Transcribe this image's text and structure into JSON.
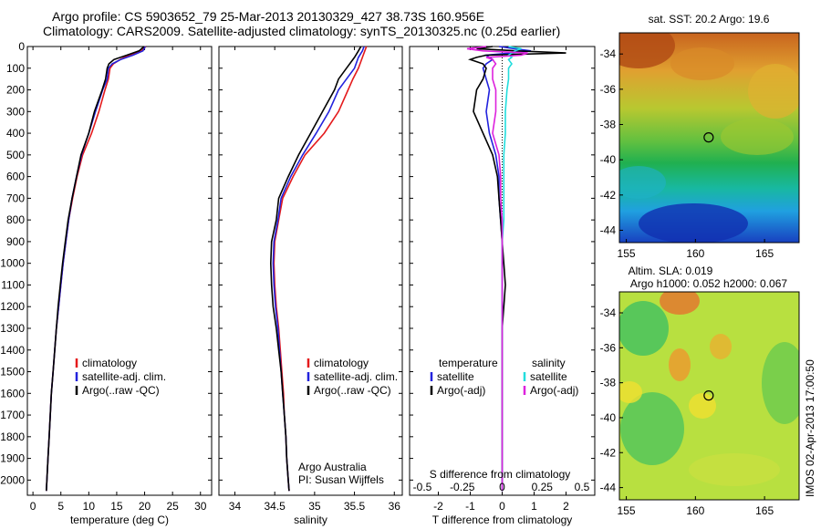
{
  "header": {
    "line1": "Argo profile: CS 5903652_79 25-Mar-2013 20130329_427 38.73S 160.956E",
    "line2": "Climatology: CARS2009. Satellite-adjusted climatology: synTS_20130325.nc (0.25d earlier)"
  },
  "colors": {
    "climatology": "#e41a1c",
    "satellite": "#2222dd",
    "argo": "#000000",
    "salinity_satellite": "#22dddd",
    "salinity_argo": "#dd22dd"
  },
  "chart_data": [
    {
      "type": "line",
      "name": "temperature profile",
      "xlabel": "temperature (deg C)",
      "ylabel": "",
      "xlim": [
        -1,
        32
      ],
      "ylim": [
        2070,
        0
      ],
      "xticks": [
        "0",
        "5",
        "10",
        "15",
        "20",
        "25",
        "30"
      ],
      "yticks": [
        "0",
        "100",
        "200",
        "300",
        "400",
        "500",
        "600",
        "700",
        "800",
        "900",
        "1000",
        "1100",
        "1200",
        "1300",
        "1400",
        "1500",
        "1600",
        "1700",
        "1800",
        "1900",
        "2000"
      ],
      "legend": [
        "climatology",
        "satellite-adj. clim.",
        "Argo(..raw -QC)"
      ],
      "legend_loc": "lower-middle",
      "y": [
        0,
        20,
        40,
        60,
        80,
        100,
        150,
        200,
        300,
        400,
        500,
        600,
        700,
        800,
        900,
        1000,
        1100,
        1200,
        1300,
        1400,
        1500,
        1600,
        1700,
        1800,
        1900,
        2000,
        2050
      ],
      "series": [
        {
          "name": "climatology",
          "color_key": "climatology",
          "values": [
            20.2,
            19.4,
            17.2,
            15.6,
            14.4,
            13.8,
            13.5,
            12.9,
            11.8,
            10.5,
            8.9,
            7.9,
            7.1,
            6.4,
            5.9,
            5.4,
            5.0,
            4.6,
            4.2,
            3.9,
            3.6,
            3.3,
            3.1,
            2.9,
            2.7,
            2.5,
            2.4
          ]
        },
        {
          "name": "satellite-adj. clim.",
          "color_key": "satellite",
          "values": [
            20.1,
            19.7,
            17.9,
            15.7,
            14.2,
            13.5,
            13.3,
            12.5,
            11.2,
            10.0,
            8.7,
            7.8,
            7.0,
            6.4,
            5.9,
            5.4,
            5.0,
            4.6,
            4.2,
            3.9,
            3.6,
            3.3,
            3.1,
            2.9,
            2.7,
            2.5,
            2.4
          ]
        },
        {
          "name": "Argo(..raw -QC)",
          "color_key": "argo",
          "values": [
            19.9,
            19.0,
            16.8,
            14.5,
            13.6,
            13.3,
            13.0,
            12.4,
            11.0,
            10.0,
            8.6,
            7.8,
            7.0,
            6.3,
            5.8,
            5.3,
            4.9,
            4.5,
            4.2,
            3.9,
            3.6,
            3.3,
            3.1,
            2.9,
            2.7,
            2.5,
            2.4
          ]
        }
      ]
    },
    {
      "type": "line",
      "name": "salinity profile",
      "xlabel": "salinity",
      "ylabel": "",
      "xlim": [
        33.8,
        36.1
      ],
      "ylim": [
        2070,
        0
      ],
      "xticks": [
        "34",
        "34.5",
        "35",
        "35.5",
        "36"
      ],
      "legend": [
        "climatology",
        "satellite-adj. clim.",
        "Argo(..raw -QC)"
      ],
      "legend_loc": "lower-middle",
      "annotation": [
        "Argo Australia",
        "PI: Susan Wijffels"
      ],
      "y": [
        0,
        20,
        50,
        100,
        150,
        200,
        300,
        400,
        500,
        600,
        700,
        800,
        900,
        1000,
        1100,
        1200,
        1300,
        1400,
        1500,
        1600,
        1700,
        1800,
        1900,
        2000,
        2050
      ],
      "series": [
        {
          "name": "climatology",
          "color_key": "climatology",
          "values": [
            35.65,
            35.63,
            35.6,
            35.55,
            35.48,
            35.42,
            35.3,
            35.12,
            34.88,
            34.73,
            34.6,
            34.55,
            34.5,
            34.49,
            34.5,
            34.52,
            34.55,
            34.57,
            34.59,
            34.61,
            34.62,
            34.64,
            34.65,
            34.67,
            34.68
          ]
        },
        {
          "name": "satellite-adj. clim.",
          "color_key": "satellite",
          "values": [
            35.62,
            35.6,
            35.55,
            35.5,
            35.4,
            35.3,
            35.18,
            35.02,
            34.85,
            34.7,
            34.58,
            34.54,
            34.49,
            34.48,
            34.49,
            34.51,
            34.54,
            34.56,
            34.58,
            34.6,
            34.62,
            34.64,
            34.65,
            34.67,
            34.68
          ]
        },
        {
          "name": "Argo(..raw -QC)",
          "color_key": "argo",
          "values": [
            35.58,
            35.55,
            35.5,
            35.4,
            35.3,
            35.25,
            35.1,
            34.95,
            34.8,
            34.67,
            34.55,
            34.52,
            34.46,
            34.45,
            34.46,
            34.48,
            34.52,
            34.55,
            34.58,
            34.6,
            34.62,
            34.64,
            34.65,
            34.67,
            34.68
          ]
        }
      ]
    },
    {
      "type": "line",
      "name": "difference from climatology",
      "xlabel": "T difference from climatology",
      "x2label": "S difference from climatology",
      "ylabel": "",
      "xlim": [
        -2.9,
        2.9
      ],
      "ylim": [
        2070,
        0
      ],
      "xticks": [
        "-2",
        "-1",
        "0",
        "1",
        "2"
      ],
      "x2ticks": [
        "-0.5",
        "-0.25",
        "0",
        "0.25",
        "0.5"
      ],
      "legend_titles": [
        "temperature",
        "salinity"
      ],
      "legend": [
        "satellite",
        "Argo(-adj)",
        "satellite",
        "Argo(-adj)"
      ],
      "legend_loc": "lower-middle",
      "y": [
        0,
        10,
        20,
        30,
        40,
        50,
        60,
        80,
        100,
        150,
        200,
        300,
        400,
        500,
        600,
        700,
        800,
        900,
        1000,
        1100,
        1200,
        1300,
        1400,
        1500,
        1600,
        1700,
        1800,
        1900,
        2000,
        2050
      ],
      "series": [
        {
          "name": "temperature satellite",
          "color_key": "satellite",
          "values": [
            -0.1,
            0.4,
            0.9,
            0.3,
            -0.5,
            -0.4,
            -0.3,
            -0.5,
            -0.6,
            -0.5,
            -0.4,
            -0.5,
            -0.4,
            -0.2,
            -0.1,
            -0.1,
            -0.05,
            0.0,
            0.0,
            0.0,
            0.0,
            0.0,
            0.0,
            0.0,
            0.0,
            0.0,
            0.0,
            0.0,
            0.0,
            0.0
          ]
        },
        {
          "name": "temperature Argo(-adj)",
          "color_key": "argo",
          "values": [
            -0.3,
            -0.8,
            0.5,
            2.0,
            -0.5,
            -0.8,
            -1.0,
            -0.6,
            -0.5,
            -0.6,
            -0.8,
            -0.9,
            -0.6,
            -0.3,
            -0.15,
            -0.1,
            -0.05,
            0.0,
            0.05,
            0.1,
            0.05,
            0.0,
            0.0,
            0.0,
            0.0,
            0.0,
            0.0,
            0.0,
            0.0,
            0.0
          ]
        },
        {
          "name": "salinity satellite",
          "color_key": "salinity_satellite",
          "values": [
            0.2,
            0.6,
            0.4,
            0.3,
            0.2,
            0.3,
            0.2,
            0.3,
            0.2,
            0.2,
            0.15,
            0.1,
            0.1,
            0.05,
            0.05,
            0.05,
            0.05,
            0.0,
            0.0,
            0.0,
            0.0,
            0.0,
            0.0,
            0.0,
            0.0,
            0.0,
            0.0,
            0.0,
            0.0,
            0.0
          ]
        },
        {
          "name": "salinity Argo(-adj)",
          "color_key": "salinity_argo",
          "values": [
            -0.5,
            -1.1,
            -0.6,
            0.8,
            0.6,
            -0.5,
            -0.3,
            -0.2,
            -0.3,
            -0.3,
            -0.2,
            -0.2,
            -0.3,
            -0.1,
            -0.05,
            -0.05,
            0.0,
            0.0,
            0.0,
            0.0,
            0.0,
            0.0,
            0.0,
            0.0,
            0.0,
            0.0,
            0.0,
            0.0,
            0.0,
            0.0
          ]
        }
      ]
    },
    {
      "type": "heatmap",
      "name": "satellite SST map",
      "title": "sat. SST: 20.2  Argo: 19.6",
      "xlim": [
        154.5,
        167.5
      ],
      "ylim": [
        -44.7,
        -32.8
      ],
      "xticks": [
        "155",
        "160",
        "165"
      ],
      "yticks": [
        "-34",
        "-36",
        "-38",
        "-40",
        "-42",
        "-44"
      ],
      "marker": {
        "lon": 160.956,
        "lat": -38.73
      }
    },
    {
      "type": "heatmap",
      "name": "altimetry SLA map",
      "title": "Altim. SLA: 0.019",
      "subtitle": "Argo h1000: 0.052 h2000: 0.067",
      "xlim": [
        154.5,
        167.5
      ],
      "ylim": [
        -44.7,
        -32.8
      ],
      "xticks": [
        "155",
        "160",
        "165"
      ],
      "yticks": [
        "-34",
        "-36",
        "-38",
        "-40",
        "-42",
        "-44"
      ],
      "marker": {
        "lon": 160.956,
        "lat": -38.73
      }
    }
  ],
  "side_label": "IMOS 02-Apr-2013 17:00:50"
}
